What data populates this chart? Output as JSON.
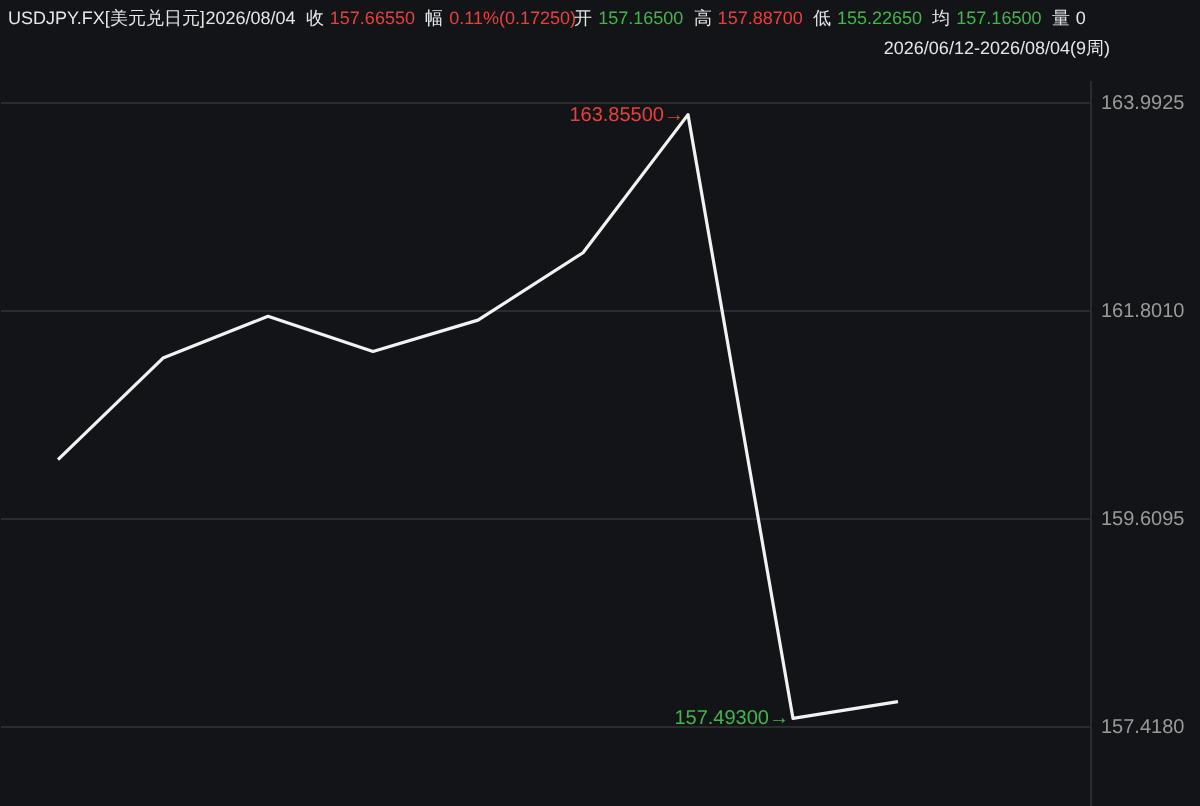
{
  "chart_data": {
    "type": "line",
    "title": "USDJPY.FX[美元兑日元]",
    "annotations": [
      "2026/08/04",
      "收",
      "157.66550",
      "幅",
      "0.11%(0.17250)",
      "开",
      "157.16500",
      "高",
      "157.88700",
      "低",
      "155.22650",
      "均",
      "157.16500",
      "量",
      "0",
      "2026/06/12-2026/08/04(9周)"
    ],
    "categories": [
      null,
      null,
      null,
      null,
      null,
      null,
      null,
      null,
      null
    ],
    "series": [
      {
        "color": "#f2f2f2",
        "values": [
          160.22,
          161.29,
          161.73,
          161.36,
          161.69,
          162.4,
          163.855,
          157.493,
          157.67
        ],
        "value_labels": [
          null,
          null,
          null,
          null,
          null,
          null,
          "163.85500→",
          "157.49300→",
          null
        ]
      }
    ],
    "ylim": [
      156.57,
      164.22
    ],
    "yticks": [
      {
        "value": 157.418,
        "label": "157.4180"
      },
      159.6095,
      {
        "value": 161.801,
        "label": "161.8010"
      },
      163.9925
    ],
    "grid": "y",
    "marker": "none",
    "line_style": "solid"
  }
}
